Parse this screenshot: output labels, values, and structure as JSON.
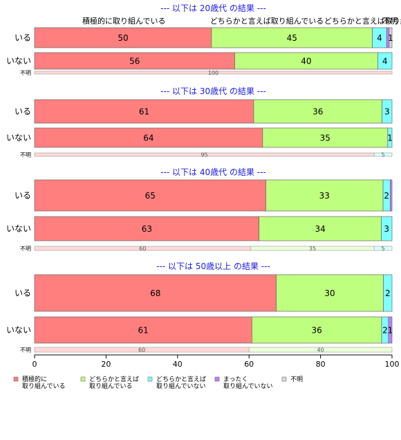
{
  "chart_data": {
    "type": "bar",
    "orientation": "horizontal-stacked-100",
    "xlim": [
      0,
      100
    ],
    "xticks": [
      0,
      20,
      40,
      60,
      80,
      100
    ],
    "categories": [
      "積極的に取り組んでいる",
      "どちらかと言えば取り組んでいる",
      "どちらかと言えば取り組んでいない",
      "まったく取り組んでいない",
      "不明"
    ],
    "legend": [
      {
        "lines": [
          "積極的に",
          "取り組んでいる"
        ],
        "color": "#ff7f7f"
      },
      {
        "lines": [
          "どちらかと言えば",
          "取り組んでいる"
        ],
        "color": "#bfff7f"
      },
      {
        "lines": [
          "どちらかと言えば",
          "取り組んでいない"
        ],
        "color": "#7fffff"
      },
      {
        "lines": [
          "まったく",
          "取り組んでいない"
        ],
        "color": "#bf7fff"
      },
      {
        "lines": [
          "不明"
        ],
        "color": "#d9d9d9"
      }
    ],
    "header_labels": [
      "積極的に取り組んでいる",
      "どちらかと言えば取り組んでいる",
      "どちらかと言えば取り組んでいない",
      "不明"
    ],
    "header_label_x": [
      25,
      65,
      98,
      99.5
    ],
    "groups": [
      {
        "title": "--- 以下は 20歳代 の結果 ---",
        "rows": [
          {
            "label": "いる",
            "values": [
              49.5,
              45,
              4,
              0.7,
              0.8
            ],
            "show": [
              "50",
              "45",
              "4",
              "",
              "1"
            ],
            "small": false
          },
          {
            "label": "いない",
            "values": [
              56,
              40,
              4,
              0,
              0
            ],
            "show": [
              "56",
              "40",
              "4",
              "",
              ""
            ],
            "small": false
          },
          {
            "label": "不明",
            "values": [
              100,
              0,
              0,
              0,
              0
            ],
            "show": [
              "100",
              "",
              "",
              "",
              ""
            ],
            "small": true
          }
        ]
      },
      {
        "title": "--- 以下は 30歳代 の結果 ---",
        "rows": [
          {
            "label": "いる",
            "values": [
              61.3,
              35.9,
              2.8,
              0,
              0
            ],
            "show": [
              "61",
              "36",
              "3",
              "",
              ""
            ],
            "small": false
          },
          {
            "label": "いない",
            "values": [
              63.8,
              35,
              1.2,
              0,
              0
            ],
            "show": [
              "64",
              "35",
              "1",
              "",
              ""
            ],
            "small": false
          },
          {
            "label": "不明",
            "values": [
              95,
              0,
              5,
              0,
              0
            ],
            "show": [
              "95",
              "",
              "5",
              "",
              ""
            ],
            "small": true
          }
        ]
      },
      {
        "title": "--- 以下は 40歳代 の結果 ---",
        "rows": [
          {
            "label": "いる",
            "values": [
              64.7,
              32.8,
              2.0,
              0.5,
              0
            ],
            "show": [
              "65",
              "33",
              "2",
              "",
              ""
            ],
            "small": false
          },
          {
            "label": "いない",
            "values": [
              62.8,
              34.2,
              3.0,
              0,
              0
            ],
            "show": [
              "63",
              "34",
              "3",
              "",
              ""
            ],
            "small": false
          },
          {
            "label": "不明",
            "values": [
              60.5,
              34.5,
              5,
              0,
              0
            ],
            "show": [
              "60",
              "35",
              "5",
              "",
              ""
            ],
            "small": true
          }
        ]
      },
      {
        "title": "--- 以下は 50歳以上 の結果 ---",
        "rows": [
          {
            "label": "いる",
            "values": [
              67.6,
              30,
              2.4,
              0,
              0
            ],
            "show": [
              "68",
              "30",
              "2",
              "",
              ""
            ],
            "small": false
          },
          {
            "label": "いない",
            "values": [
              60.8,
              36.3,
              1.9,
              1.0,
              0
            ],
            "show": [
              "61",
              "36",
              "2",
              "1",
              ""
            ],
            "small": false
          },
          {
            "label": "不明",
            "values": [
              60,
              40,
              0,
              0,
              0
            ],
            "show": [
              "60",
              "40",
              "",
              "",
              ""
            ],
            "small": true
          }
        ]
      }
    ]
  }
}
